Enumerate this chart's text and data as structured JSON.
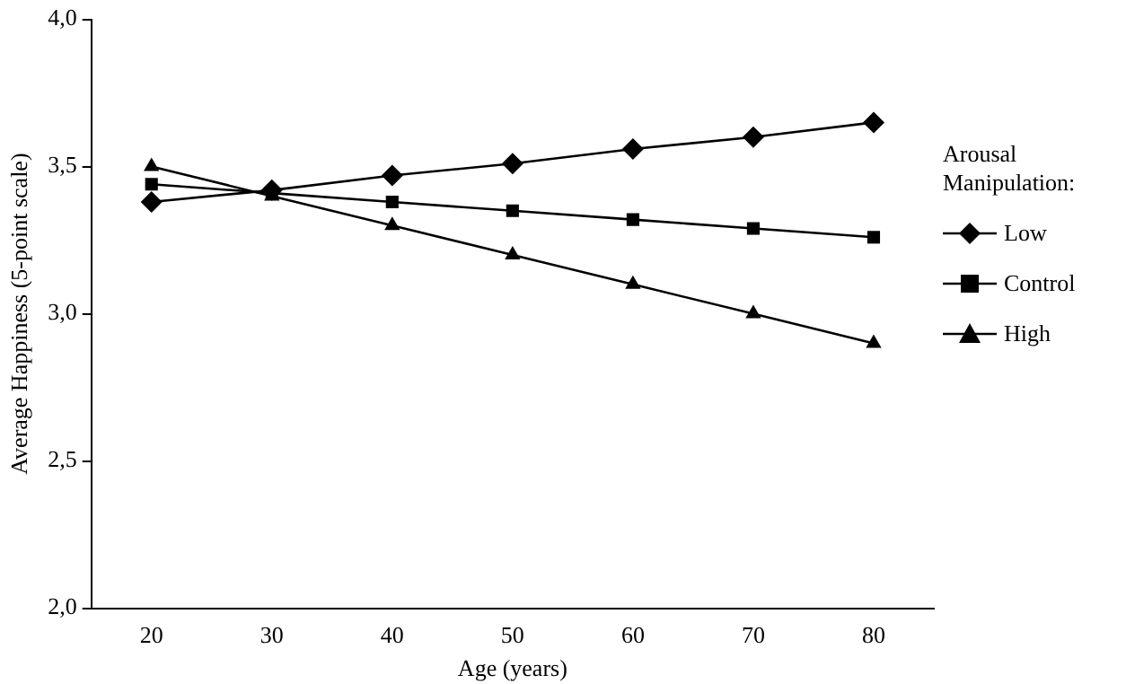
{
  "chart_data": {
    "type": "line",
    "xlabel": "Age (years)",
    "ylabel": "Average Happiness (5-point scale)",
    "legend_title": "Arousal Manipulation:",
    "legend": "right",
    "grid": false,
    "categories": [
      "20",
      "30",
      "40",
      "50",
      "60",
      "70",
      "80"
    ],
    "ylim": [
      2.0,
      4.0
    ],
    "yticks": [
      {
        "value": 2.0,
        "label": "2,0"
      },
      {
        "value": 2.5,
        "label": "2,5"
      },
      {
        "value": 3.0,
        "label": "3,0"
      },
      {
        "value": 3.5,
        "label": "3,5"
      },
      {
        "value": 4.0,
        "label": "4,0"
      }
    ],
    "series": [
      {
        "name": "Low",
        "color": "#000000",
        "marker": "diamond",
        "values": [
          3.38,
          3.42,
          3.47,
          3.51,
          3.56,
          3.6,
          3.65
        ]
      },
      {
        "name": "Control",
        "color": "#000000",
        "marker": "square",
        "values": [
          3.44,
          3.41,
          3.38,
          3.35,
          3.32,
          3.29,
          3.26
        ]
      },
      {
        "name": "High",
        "color": "#000000",
        "marker": "triangle",
        "values": [
          3.5,
          3.4,
          3.3,
          3.2,
          3.1,
          3.0,
          2.9
        ]
      }
    ]
  }
}
